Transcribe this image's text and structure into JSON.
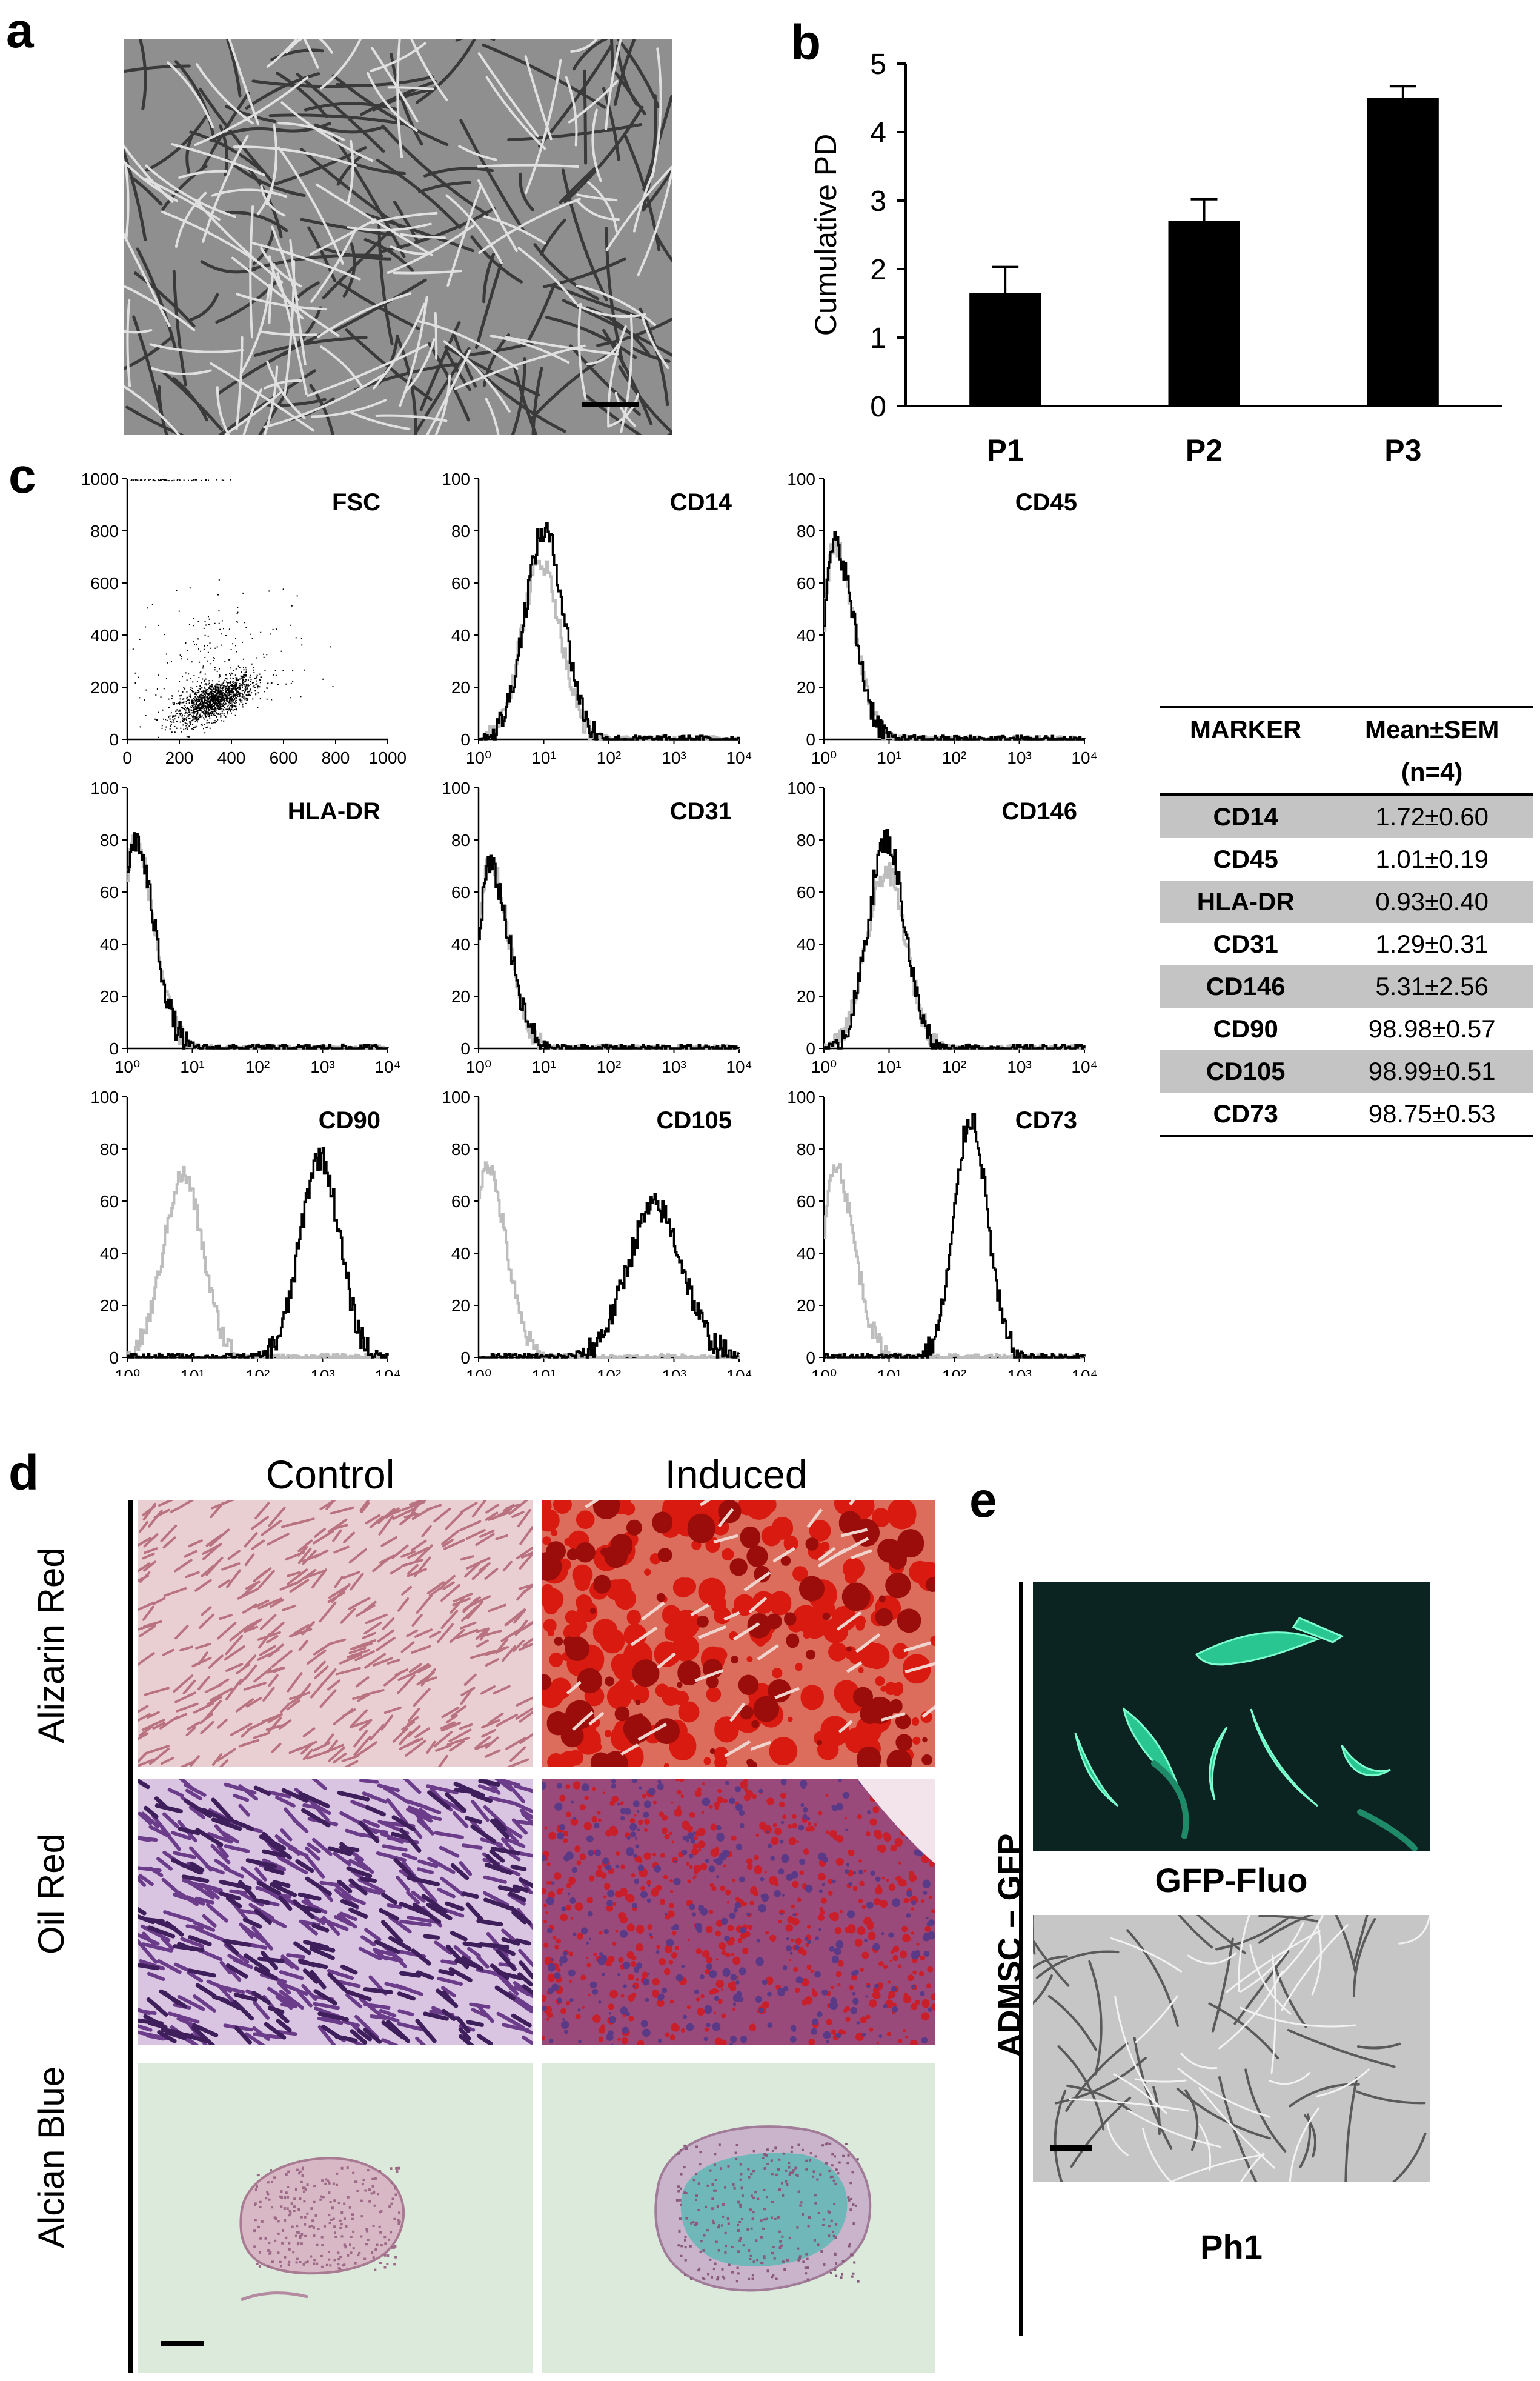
{
  "panels": {
    "a": {
      "label": "a",
      "description_icon": "phase-contrast-micrograph"
    },
    "b": {
      "label": "b"
    },
    "c": {
      "label": "c"
    },
    "d": {
      "label": "d",
      "columns": [
        "Control",
        "Induced"
      ],
      "rows": [
        "Alizarin Red",
        "Oil Red",
        "Alcian Blue"
      ]
    },
    "e": {
      "label": "e",
      "side_label": "ADMSC – GFP",
      "captions": [
        "GFP-Fluo",
        "Ph1"
      ]
    }
  },
  "chart_data": [
    {
      "type": "bar",
      "panel": "b",
      "categories": [
        "P1",
        "P2",
        "P3"
      ],
      "values": [
        1.65,
        2.7,
        4.5
      ],
      "errors": [
        0.38,
        0.32,
        0.17
      ],
      "title": "",
      "xlabel": "",
      "ylabel": "Cumulative PD",
      "ylim": [
        0,
        5
      ],
      "yticks": [
        "0",
        "1",
        "2",
        "3",
        "4",
        "5"
      ]
    },
    {
      "type": "scatter",
      "panel": "c",
      "name": "FSC",
      "xlim": [
        0,
        1000
      ],
      "ylim": [
        0,
        1000
      ],
      "xticks": [
        "0",
        "200",
        "400",
        "600",
        "800",
        "1000"
      ],
      "yticks": [
        "0",
        "200",
        "400",
        "600",
        "800",
        "1000"
      ],
      "cluster_center": [
        330,
        150
      ]
    },
    {
      "type": "histogram",
      "panel": "c",
      "name": "CD14",
      "ylim": [
        0,
        100
      ],
      "yticks": [
        "0",
        "20",
        "40",
        "60",
        "80",
        "100"
      ],
      "xticks": [
        "10⁰",
        "10¹",
        "10²",
        "10³",
        "10⁴"
      ],
      "control_peak_log": 0.95,
      "control_peak_y": 68,
      "sample_peak_log": 1.0,
      "sample_peak_y": 80,
      "sample_width": 0.3
    },
    {
      "type": "histogram",
      "panel": "c",
      "name": "CD45",
      "ylim": [
        0,
        100
      ],
      "yticks": [
        "0",
        "20",
        "40",
        "60",
        "80",
        "100"
      ],
      "xticks": [
        "10⁰",
        "10¹",
        "10²",
        "10³",
        "10⁴"
      ],
      "control_peak_log": 0.15,
      "control_peak_y": 75,
      "sample_peak_log": 0.15,
      "sample_peak_y": 75,
      "sample_width": 0.3
    },
    {
      "type": "histogram",
      "panel": "c",
      "name": "HLA-DR",
      "ylim": [
        0,
        100
      ],
      "yticks": [
        "0",
        "20",
        "40",
        "60",
        "80",
        "100"
      ],
      "xticks": [
        "10⁰",
        "10¹",
        "10²",
        "10³",
        "10⁴"
      ],
      "control_peak_log": 0.1,
      "control_peak_y": 80,
      "sample_peak_log": 0.1,
      "sample_peak_y": 80,
      "sample_width": 0.3
    },
    {
      "type": "histogram",
      "panel": "c",
      "name": "CD31",
      "ylim": [
        0,
        100
      ],
      "yticks": [
        "0",
        "20",
        "40",
        "60",
        "80",
        "100"
      ],
      "xticks": [
        "10⁰",
        "10¹",
        "10²",
        "10³",
        "10⁴"
      ],
      "control_peak_log": 0.15,
      "control_peak_y": 72,
      "sample_peak_log": 0.15,
      "sample_peak_y": 70,
      "sample_width": 0.3
    },
    {
      "type": "histogram",
      "panel": "c",
      "name": "CD146",
      "ylim": [
        0,
        100
      ],
      "yticks": [
        "0",
        "20",
        "40",
        "60",
        "80",
        "100"
      ],
      "xticks": [
        "10⁰",
        "10¹",
        "10²",
        "10³",
        "10⁴"
      ],
      "control_peak_log": 0.95,
      "control_peak_y": 68,
      "sample_peak_log": 0.95,
      "sample_peak_y": 80,
      "sample_width": 0.28
    },
    {
      "type": "histogram",
      "panel": "c",
      "name": "CD90",
      "ylim": [
        0,
        100
      ],
      "yticks": [
        "0",
        "20",
        "40",
        "60",
        "80",
        "100"
      ],
      "xticks": [
        "10⁰",
        "10¹",
        "10²",
        "10³",
        "10⁴"
      ],
      "control_peak_log": 0.85,
      "control_peak_y": 70,
      "sample_peak_log": 2.95,
      "sample_peak_y": 77,
      "sample_width": 0.3
    },
    {
      "type": "histogram",
      "panel": "c",
      "name": "CD105",
      "ylim": [
        0,
        100
      ],
      "yticks": [
        "0",
        "20",
        "40",
        "60",
        "80",
        "100"
      ],
      "xticks": [
        "10⁰",
        "10¹",
        "10²",
        "10³",
        "10⁴"
      ],
      "control_peak_log": 0.1,
      "control_peak_y": 75,
      "sample_peak_log": 2.7,
      "sample_peak_y": 58,
      "sample_width": 0.42
    },
    {
      "type": "histogram",
      "panel": "c",
      "name": "CD73",
      "ylim": [
        0,
        100
      ],
      "yticks": [
        "0",
        "20",
        "40",
        "60",
        "80",
        "100"
      ],
      "xticks": [
        "10⁰",
        "10¹",
        "10²",
        "10³",
        "10⁴"
      ],
      "control_peak_log": 0.15,
      "control_peak_y": 75,
      "sample_peak_log": 2.25,
      "sample_peak_y": 92,
      "sample_width": 0.25
    }
  ],
  "marker_table": {
    "headers": [
      "MARKER",
      "Mean±SEM",
      "(n=4)"
    ],
    "rows": [
      {
        "marker": "CD14",
        "value": "1.72±0.60"
      },
      {
        "marker": "CD45",
        "value": "1.01±0.19"
      },
      {
        "marker": "HLA-DR",
        "value": "0.93±0.40"
      },
      {
        "marker": "CD31",
        "value": "1.29±0.31"
      },
      {
        "marker": "CD146",
        "value": "5.31±2.56"
      },
      {
        "marker": "CD90",
        "value": "98.98±0.57"
      },
      {
        "marker": "CD105",
        "value": "98.99±0.51"
      },
      {
        "marker": "CD73",
        "value": "98.75±0.53"
      }
    ]
  }
}
